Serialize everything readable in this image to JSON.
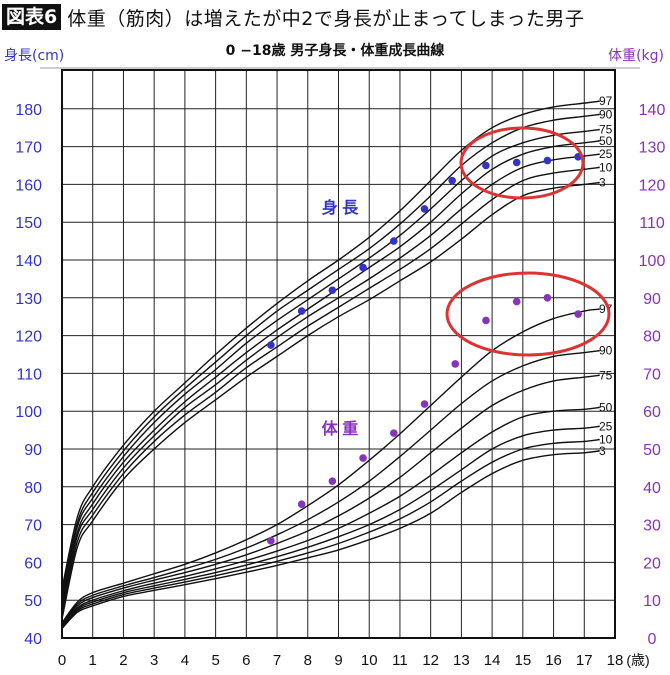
{
  "header": {
    "figure_label": "図表6",
    "title": "体重（筋肉）は増えたが中2で身長が止まってしまった男子",
    "subtitle": "0 −18歳 男子身長・体重成長曲線",
    "left_axis_title": "身長(cm)",
    "right_axis_title": "体重(kg)",
    "x_unit": "(歳)",
    "height_label": "身 長",
    "weight_label": "体 重"
  },
  "colors": {
    "height_color": "#3333cc",
    "weight_color": "#8833bb",
    "highlight_ellipse": "#dd3333",
    "curve": "#111111"
  },
  "chart_data": {
    "type": "line",
    "title": "0−18歳 男子身長・体重成長曲線",
    "xlabel": "(歳)",
    "ylabel_left": "身長(cm)",
    "ylabel_right": "体重(kg)",
    "x_ticks": [
      0,
      1,
      2,
      3,
      4,
      5,
      6,
      7,
      8,
      9,
      10,
      11,
      12,
      13,
      14,
      15,
      16,
      17,
      18
    ],
    "ylim_left": [
      40,
      190
    ],
    "y_ticks_left": [
      40,
      50,
      60,
      70,
      80,
      90,
      100,
      110,
      120,
      130,
      140,
      150,
      160,
      170,
      180
    ],
    "ylim_right": [
      0,
      150
    ],
    "y_ticks_right": [
      0,
      10,
      20,
      30,
      40,
      50,
      60,
      70,
      80,
      90,
      100,
      110,
      120,
      130,
      140
    ],
    "grid": true,
    "percentile_labels": [
      "97",
      "90",
      "75",
      "50",
      "25",
      "10",
      "3"
    ],
    "height_percentiles": {
      "ages": [
        0,
        0.5,
        1,
        2,
        3,
        4,
        5,
        6,
        7,
        8,
        9,
        10,
        11,
        12,
        13,
        14,
        15,
        16,
        17,
        17.5
      ],
      "series": [
        {
          "name": "97",
          "values": [
            53,
            72,
            80,
            91,
            100,
            107.5,
            115,
            122,
            128.5,
            134.5,
            140,
            146,
            153,
            161,
            169,
            175,
            178.5,
            180.5,
            181.5,
            182
          ]
        },
        {
          "name": "90",
          "values": [
            51.5,
            70.5,
            78.5,
            89.5,
            98.5,
            106,
            113,
            120,
            126.5,
            132,
            137.5,
            143,
            149.5,
            157,
            165,
            171,
            175,
            177,
            178,
            178.5
          ]
        },
        {
          "name": "75",
          "values": [
            50.5,
            69.5,
            77,
            88,
            97,
            104.5,
            111,
            118,
            124,
            129.5,
            135,
            140.5,
            146.5,
            153.5,
            161,
            167.5,
            171,
            173,
            174,
            174.5
          ]
        },
        {
          "name": "50",
          "values": [
            49,
            68,
            75.5,
            86.5,
            95,
            102.5,
            109,
            115.5,
            121.5,
            127,
            132.5,
            138,
            143.5,
            150,
            157.5,
            164,
            168,
            170,
            171,
            171.5
          ]
        },
        {
          "name": "25",
          "values": [
            48,
            67,
            74,
            85,
            93.5,
            101,
            107,
            113.5,
            119.5,
            125,
            130,
            135,
            140.5,
            146.5,
            153.5,
            160,
            164.5,
            166.5,
            167.5,
            168
          ]
        },
        {
          "name": "10",
          "values": [
            46.5,
            65.5,
            72.5,
            83.5,
            92,
            99,
            105,
            111.5,
            117,
            122.5,
            127.5,
            132.5,
            137.5,
            143,
            149.5,
            156,
            161,
            163,
            164,
            164.5
          ]
        },
        {
          "name": "3",
          "values": [
            45,
            64,
            71,
            82,
            90,
            97,
            103,
            109,
            114.5,
            120,
            125,
            129.5,
            134.5,
            139.5,
            145.5,
            152,
            157,
            159,
            160,
            160.5
          ]
        }
      ]
    },
    "weight_percentiles": {
      "ages": [
        0,
        0.5,
        1,
        2,
        3,
        4,
        5,
        6,
        7,
        8,
        9,
        10,
        11,
        12,
        13,
        14,
        15,
        16,
        17,
        17.5
      ],
      "series": [
        {
          "name": "97",
          "values": [
            4,
            9.5,
            12,
            14.5,
            17,
            19.5,
            22.5,
            26,
            30,
            35,
            40.5,
            47,
            54,
            61.5,
            69,
            76,
            81,
            84.5,
            86.5,
            87
          ]
        },
        {
          "name": "90",
          "values": [
            3.8,
            9,
            11.3,
            13.8,
            16,
            18.3,
            20.8,
            23.8,
            27.3,
            31.3,
            36,
            41.5,
            48,
            55,
            62,
            68,
            72,
            74.5,
            75.5,
            76
          ]
        },
        {
          "name": "75",
          "values": [
            3.5,
            8.5,
            10.7,
            13.2,
            15.3,
            17.3,
            19.5,
            22,
            25,
            28.3,
            32.3,
            37,
            42.5,
            49,
            55.5,
            61.5,
            65.5,
            68,
            69,
            69.5
          ]
        },
        {
          "name": "50",
          "values": [
            3.2,
            8,
            10,
            12.5,
            14.5,
            16.3,
            18.3,
            20.5,
            23,
            25.8,
            29,
            33,
            37.5,
            43,
            49,
            54.5,
            58.5,
            60,
            60.5,
            61
          ]
        },
        {
          "name": "25",
          "values": [
            3,
            7.6,
            9.5,
            12,
            13.8,
            15.5,
            17.3,
            19.3,
            21.5,
            24,
            26.8,
            30,
            34,
            39,
            44.5,
            50,
            53.5,
            55,
            55.5,
            56
          ]
        },
        {
          "name": "10",
          "values": [
            2.8,
            7.2,
            9,
            11.5,
            13.2,
            14.8,
            16.5,
            18.3,
            20.3,
            22.5,
            25,
            28,
            31.5,
            36,
            41.5,
            46.5,
            50,
            51.5,
            52,
            52.5
          ]
        },
        {
          "name": "3",
          "values": [
            2.5,
            6.8,
            8.5,
            11,
            12.6,
            14.1,
            15.7,
            17.4,
            19.2,
            21.2,
            23.3,
            26,
            29,
            33,
            38.5,
            43.5,
            47,
            48.5,
            49,
            49.5
          ]
        }
      ]
    },
    "subject_height": {
      "name": "身長",
      "ages": [
        6.8,
        7.8,
        8.8,
        9.8,
        10.8,
        11.8,
        12.7,
        13.8,
        14.8,
        15.8,
        16.8
      ],
      "values": [
        117.5,
        126.5,
        132,
        138,
        145,
        153.5,
        161,
        165,
        165.8,
        166.3,
        167.3
      ]
    },
    "subject_weight": {
      "name": "体重",
      "ages": [
        6.8,
        7.8,
        8.8,
        9.8,
        10.8,
        11.8,
        12.8,
        13.8,
        14.8,
        15.8,
        16.8
      ],
      "values": [
        25.7,
        35.4,
        41.5,
        47.6,
        54.2,
        61.9,
        72.5,
        84,
        89,
        90,
        85.7
      ]
    },
    "annotations": [
      {
        "type": "ellipse",
        "target": "height ages 13.5–17",
        "color": "#dd3333"
      },
      {
        "type": "ellipse",
        "target": "weight ages 12.5–17",
        "color": "#dd3333"
      }
    ]
  }
}
